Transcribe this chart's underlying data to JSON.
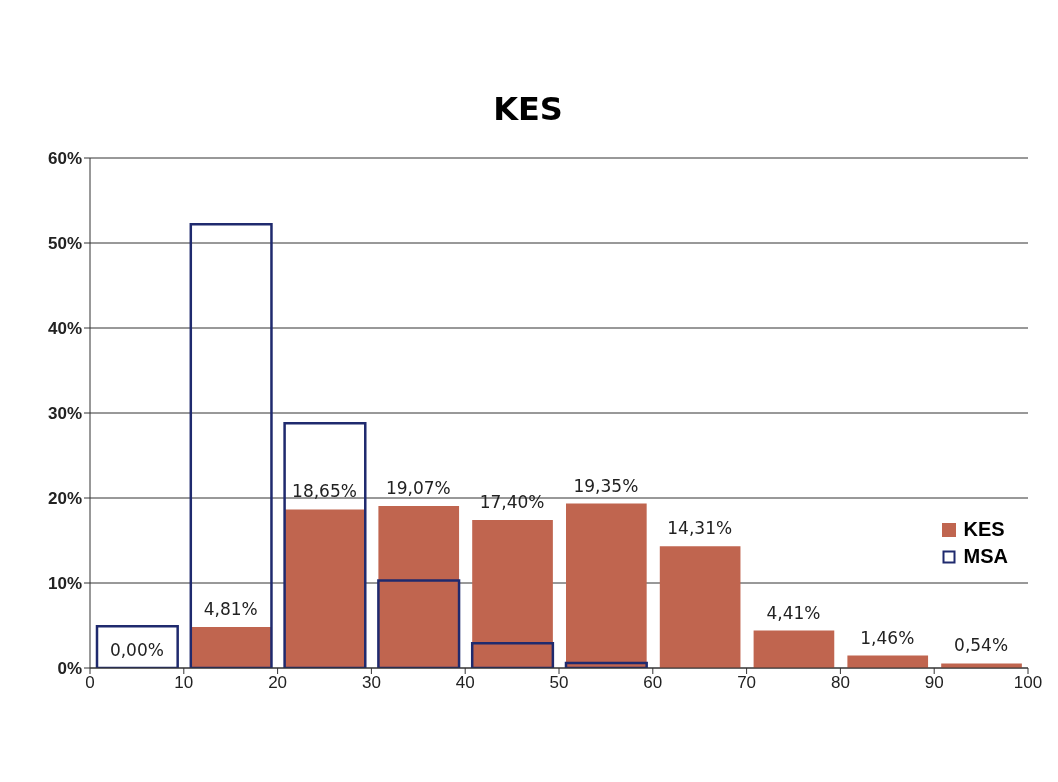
{
  "chart_data": {
    "type": "histogram",
    "title": "KES",
    "bins": [
      0,
      10,
      20,
      30,
      40,
      50,
      60,
      70,
      80,
      90,
      100
    ],
    "series": [
      {
        "name": "KES",
        "color": "#c0654f",
        "values": [
          0,
          4.81,
          18.65,
          19.07,
          17.4,
          19.35,
          14.31,
          4.41,
          1.46,
          0.54
        ],
        "value_labels": [
          "0,00%",
          "4,81%",
          "18,65%",
          "19,07%",
          "17,40%",
          "19,35%",
          "14,31%",
          "4,41%",
          "1,46%",
          "0,54%"
        ]
      },
      {
        "name": "MSA",
        "color": "#1f2a6e",
        "values": [
          4.9,
          52.2,
          28.8,
          10.3,
          2.9,
          0.6,
          0,
          0,
          0,
          0
        ]
      }
    ],
    "xlim": [
      0,
      100
    ],
    "xticks": [
      0,
      10,
      20,
      30,
      40,
      50,
      60,
      70,
      80,
      90,
      100
    ],
    "ylim": [
      0,
      60
    ],
    "yticks": [
      {
        "value": 0,
        "label": "0%"
      },
      {
        "value": 10,
        "label": "10%"
      },
      {
        "value": 20,
        "label": "20%"
      },
      {
        "value": 30,
        "label": "30%"
      },
      {
        "value": 40,
        "label": "40%"
      },
      {
        "value": 50,
        "label": "50%"
      },
      {
        "value": 60,
        "label": "60%"
      }
    ],
    "grid": "y",
    "legend": "right"
  }
}
